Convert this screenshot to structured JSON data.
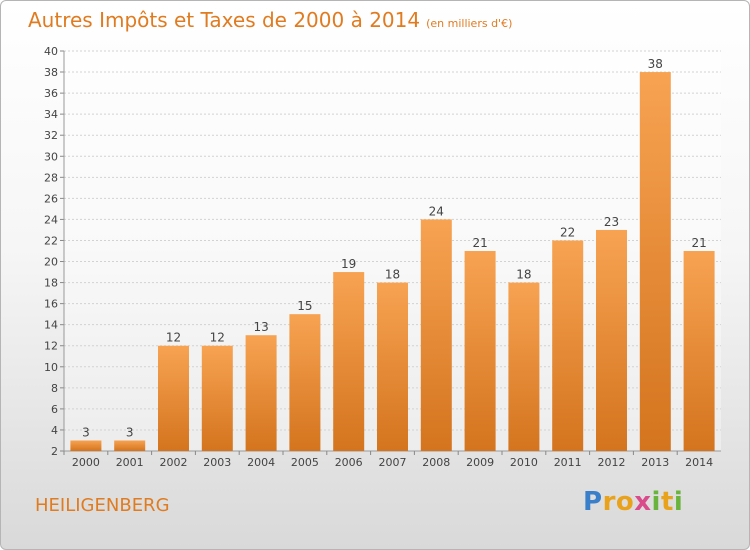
{
  "header": {
    "title": "Autres Impôts et Taxes de 2000 à 2014",
    "unit": "(en milliers d'€)"
  },
  "footer": {
    "commune": "HEILIGENBERG",
    "logo_text": "Proxiti",
    "logo_letters": [
      {
        "ch": "P",
        "color": "#3a7fc9"
      },
      {
        "ch": "r",
        "color": "#e9a21c"
      },
      {
        "ch": "o",
        "color": "#e9a21c"
      },
      {
        "ch": "x",
        "color": "#d94b8a"
      },
      {
        "ch": "i",
        "color": "#6ab43d"
      },
      {
        "ch": "t",
        "color": "#e9a21c"
      },
      {
        "ch": "i",
        "color": "#6ab43d"
      }
    ]
  },
  "colors": {
    "accent": "#e07b20",
    "bar_top": "#f7a352",
    "bar_bottom": "#d4741e"
  },
  "chart_data": {
    "type": "bar",
    "title": "Autres Impôts et Taxes de 2000 à 2014",
    "subtitle": "(en milliers d'€)",
    "categories": [
      "2000",
      "2001",
      "2002",
      "2003",
      "2004",
      "2005",
      "2006",
      "2007",
      "2008",
      "2009",
      "2010",
      "2011",
      "2012",
      "2013",
      "2014"
    ],
    "values": [
      3,
      3,
      12,
      12,
      13,
      15,
      19,
      18,
      24,
      21,
      18,
      22,
      23,
      38,
      21
    ],
    "ylim": [
      2,
      40
    ],
    "yticks": [
      2,
      4,
      6,
      8,
      10,
      12,
      14,
      16,
      18,
      20,
      22,
      24,
      26,
      28,
      30,
      32,
      34,
      36,
      38,
      40
    ],
    "grid": true,
    "legend": "none"
  }
}
